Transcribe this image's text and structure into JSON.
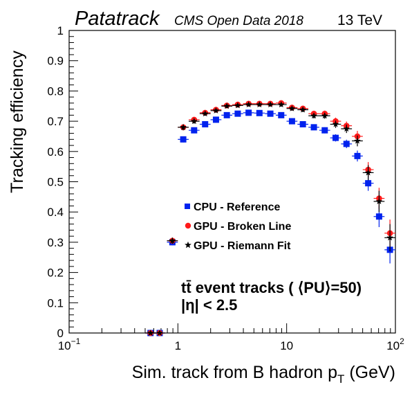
{
  "header": {
    "brand": "Patatrack",
    "subtitle": "CMS Open Data 2018",
    "energy": "13 TeV"
  },
  "annotations": {
    "line1": "tt̄ event tracks ( ⟨PU⟩=50)",
    "line2": "|η| < 2.5"
  },
  "colors": {
    "cpu": "#0022ee",
    "gpu_broken_line": "#ff1a1a",
    "gpu_riemann": "#000000"
  },
  "chart_data": {
    "type": "scatter",
    "xlabel": "Sim. track from B hadron p_T (GeV)",
    "xlabel_main": "Sim. track from B hadron p",
    "xlabel_sub": "T",
    "xlabel_unit": " (GeV)",
    "ylabel": "Tracking efficiency",
    "xscale": "log",
    "xlim": [
      0.1,
      100
    ],
    "ylim": [
      0,
      1
    ],
    "x_ticks": [
      {
        "value": 0.1,
        "base": "10",
        "exp": "−1"
      },
      {
        "value": 1,
        "base": "1",
        "exp": ""
      },
      {
        "value": 10,
        "base": "10",
        "exp": ""
      },
      {
        "value": 100,
        "base": "10",
        "exp": "2"
      }
    ],
    "y_ticks": [
      "0",
      "0.1",
      "0.2",
      "0.3",
      "0.4",
      "0.5",
      "0.6",
      "0.7",
      "0.8",
      "0.9",
      "1"
    ],
    "grid": false,
    "legend_position": "center",
    "series": [
      {
        "name": "CPU - Reference",
        "marker": "square",
        "x": [
          0.56,
          0.68,
          0.89,
          1.12,
          1.41,
          1.78,
          2.24,
          2.82,
          3.55,
          4.47,
          5.62,
          7.08,
          8.91,
          11.2,
          14.1,
          17.8,
          22.4,
          28.2,
          35.5,
          44.7,
          56.2,
          70.8,
          89.1
        ],
        "y": [
          0.0,
          0.0,
          0.3,
          0.64,
          0.67,
          0.69,
          0.705,
          0.72,
          0.725,
          0.728,
          0.727,
          0.725,
          0.72,
          0.7,
          0.69,
          0.68,
          0.67,
          0.645,
          0.625,
          0.585,
          0.495,
          0.385,
          0.275
        ],
        "yerr": [
          0.003,
          0.003,
          0.01,
          0.01,
          0.008,
          0.007,
          0.006,
          0.006,
          0.006,
          0.006,
          0.006,
          0.006,
          0.007,
          0.007,
          0.008,
          0.009,
          0.01,
          0.012,
          0.014,
          0.018,
          0.025,
          0.035,
          0.045
        ]
      },
      {
        "name": "GPU - Broken Line",
        "marker": "circle",
        "x": [
          0.56,
          0.68,
          0.89,
          1.12,
          1.41,
          1.78,
          2.24,
          2.82,
          3.55,
          4.47,
          5.62,
          7.08,
          8.91,
          11.2,
          14.1,
          17.8,
          22.4,
          28.2,
          35.5,
          44.7,
          56.2,
          70.8,
          89.1
        ],
        "y": [
          0.0,
          0.0,
          0.305,
          0.68,
          0.705,
          0.728,
          0.738,
          0.752,
          0.755,
          0.758,
          0.758,
          0.758,
          0.76,
          0.745,
          0.742,
          0.725,
          0.725,
          0.7,
          0.685,
          0.65,
          0.54,
          0.445,
          0.33
        ],
        "yerr": [
          0.003,
          0.003,
          0.01,
          0.01,
          0.008,
          0.007,
          0.006,
          0.006,
          0.006,
          0.006,
          0.006,
          0.006,
          0.007,
          0.007,
          0.008,
          0.009,
          0.01,
          0.012,
          0.014,
          0.018,
          0.025,
          0.035,
          0.045
        ]
      },
      {
        "name": "GPU - Riemann Fit",
        "marker": "star",
        "x": [
          0.56,
          0.68,
          0.89,
          1.12,
          1.41,
          1.78,
          2.24,
          2.82,
          3.55,
          4.47,
          5.62,
          7.08,
          8.91,
          11.2,
          14.1,
          17.8,
          22.4,
          28.2,
          35.5,
          44.7,
          56.2,
          70.8,
          89.1
        ],
        "y": [
          0.0,
          0.0,
          0.305,
          0.68,
          0.7,
          0.725,
          0.735,
          0.75,
          0.752,
          0.755,
          0.755,
          0.755,
          0.755,
          0.742,
          0.738,
          0.718,
          0.718,
          0.69,
          0.675,
          0.635,
          0.53,
          0.435,
          0.315
        ],
        "yerr": [
          0.003,
          0.003,
          0.01,
          0.01,
          0.008,
          0.007,
          0.006,
          0.006,
          0.006,
          0.006,
          0.006,
          0.006,
          0.007,
          0.007,
          0.008,
          0.009,
          0.01,
          0.012,
          0.014,
          0.018,
          0.025,
          0.035,
          0.045
        ]
      }
    ]
  }
}
